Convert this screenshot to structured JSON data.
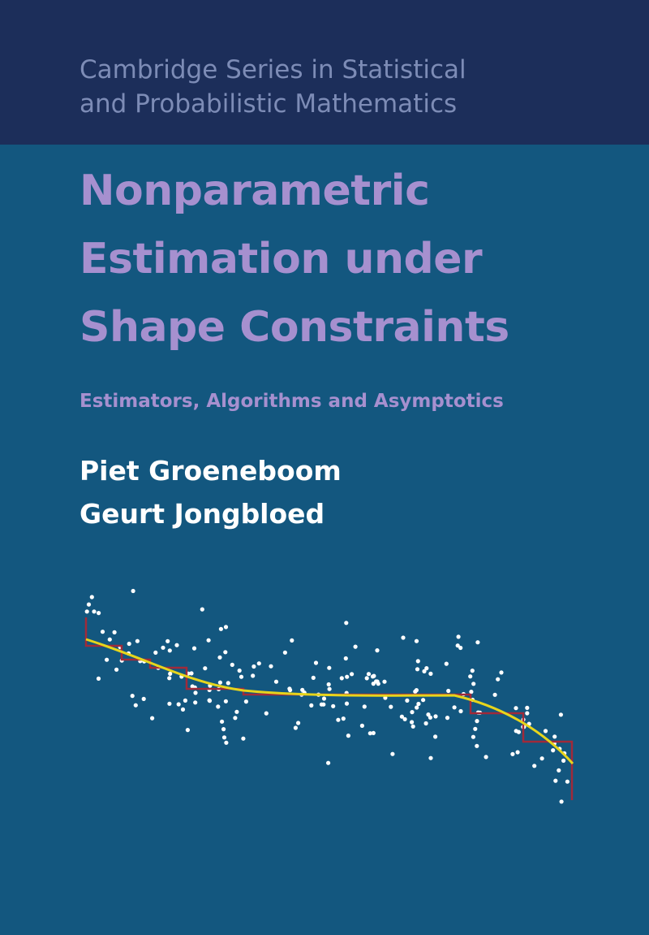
{
  "series": {
    "lines": [
      "Cambridge Series in Statistical",
      "and Probabilistic Mathematics"
    ]
  },
  "title": {
    "lines": [
      "Nonparametric",
      "Estimation under",
      "Shape Constraints"
    ]
  },
  "subtitle": "Estimators, Algorithms and Asymptotics",
  "authors": [
    "Piet Groeneboom",
    "Geurt Jongbloed"
  ]
}
